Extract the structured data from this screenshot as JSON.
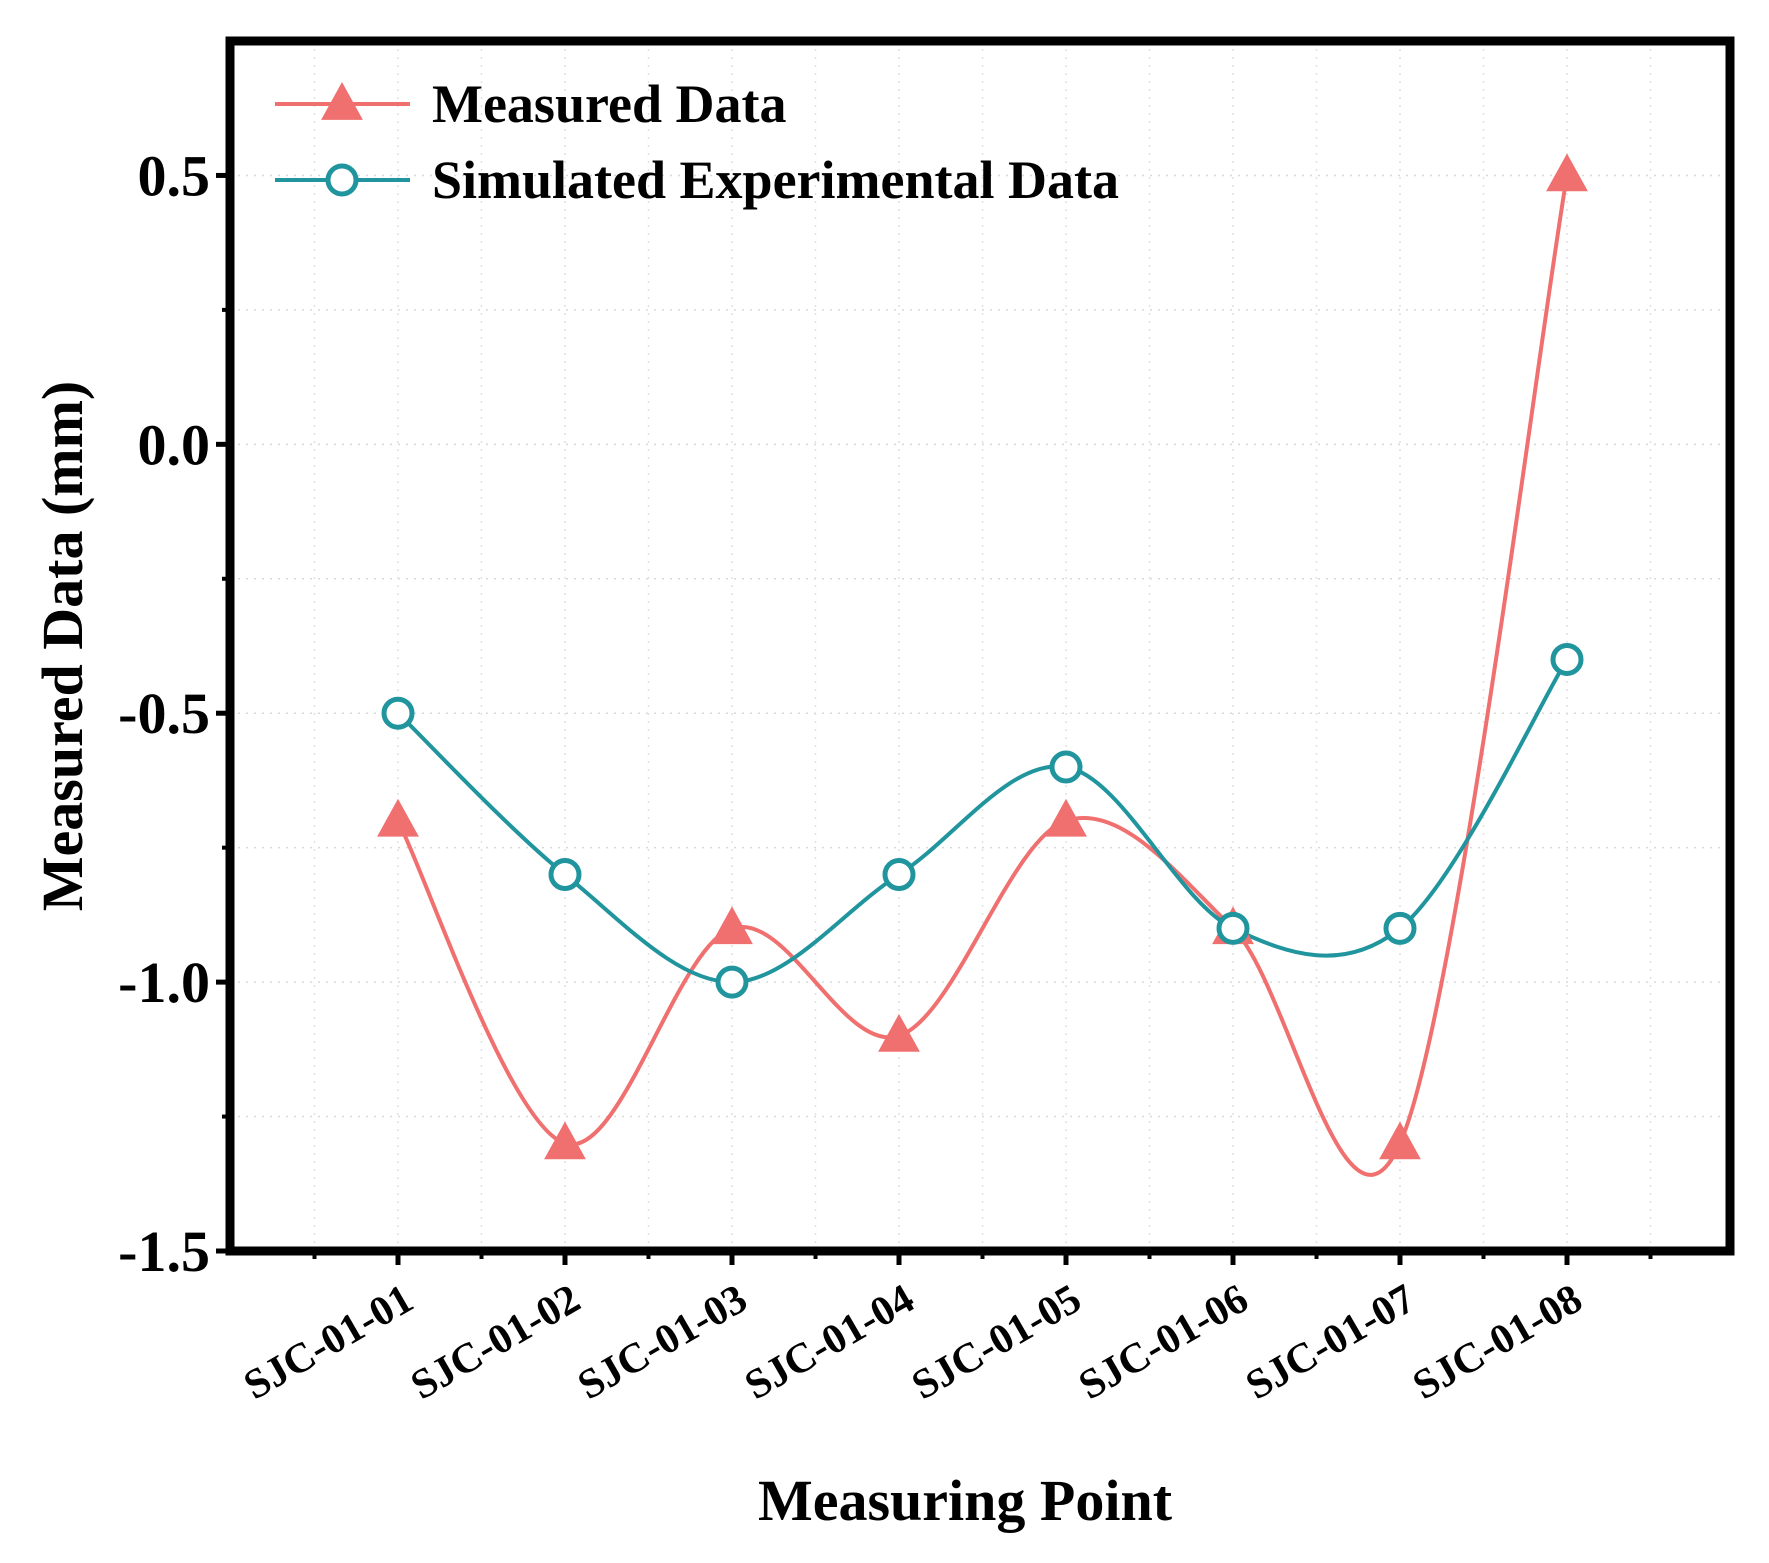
{
  "chart_data": {
    "type": "line",
    "title": "",
    "xlabel": "Measuring Point",
    "ylabel": "Measured Data (mm)",
    "categories": [
      "SJC-01-01",
      "SJC-01-02",
      "SJC-01-03",
      "SJC-01-04",
      "SJC-01-05",
      "SJC-01-06",
      "SJC-01-07",
      "SJC-01-08"
    ],
    "ylim": [
      -1.5,
      0.75
    ],
    "yticks": [
      -1.5,
      -1.0,
      -0.5,
      0.0,
      0.5
    ],
    "ytick_labels": [
      "-1.5",
      "-1.0",
      "-0.5",
      "0.0",
      "0.5"
    ],
    "grid": true,
    "legend_position": "top-left",
    "series": [
      {
        "name": "Measured Data",
        "color": "#f07070",
        "marker": "triangle",
        "values": [
          -0.7,
          -1.3,
          -0.9,
          -1.1,
          -0.7,
          -0.9,
          -1.3,
          0.5
        ]
      },
      {
        "name": "Simulated Experimental Data",
        "color": "#21959e",
        "marker": "circle",
        "values": [
          -0.5,
          -0.8,
          -1.0,
          -0.8,
          -0.6,
          -0.9,
          -0.9,
          -0.4
        ]
      }
    ]
  }
}
